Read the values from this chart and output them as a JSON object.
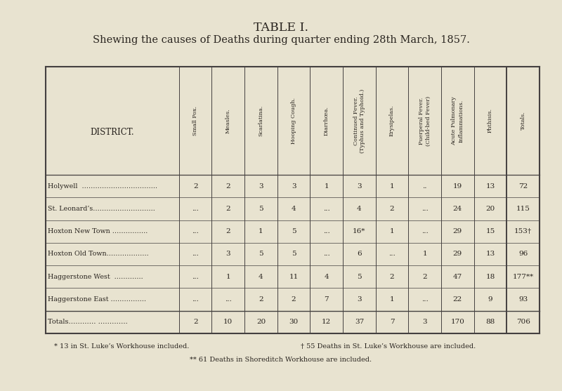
{
  "title": "TABLE I.",
  "subtitle": "Shewing the causes of Deaths during quarter ending 28th March, 1857.",
  "bg_color": "#e8e3d0",
  "text_color": "#2a2520",
  "col_headers": [
    "Small Pox.",
    "Measles.",
    "Scarlatina.",
    "Hooping Cough.",
    "Diarrhœa.",
    "Continued Fever.\n(Typhus and Typhoid.)",
    "Erysipelas.",
    "Puerperal Fever.\n(Child-bed Fever)",
    "Acute Pulmonary\nInflammations.",
    "Phthisis.",
    "Totals."
  ],
  "districts": [
    "Holywell  …………………………….",
    "St. Leonard’s……………………….",
    "Hoxton New Town …………….",
    "Hoxton Old Town……………….",
    "Haggerstone West  ………….",
    "Haggerstone East ……………."
  ],
  "data": [
    [
      "2",
      "2",
      "3",
      "3",
      "1",
      "3",
      "1",
      "..",
      "19",
      "13",
      "72"
    ],
    [
      "...",
      "2",
      "5",
      "4",
      "...",
      "4",
      "2",
      "...",
      "24",
      "20",
      "115"
    ],
    [
      "...",
      "2",
      "1",
      "5",
      "...",
      "16*",
      "1",
      "...",
      "29",
      "15",
      "153†"
    ],
    [
      "...",
      "3",
      "5",
      "5",
      "...",
      "6",
      "...",
      "1",
      "29",
      "13",
      "96"
    ],
    [
      "...",
      "1",
      "4",
      "11",
      "4",
      "5",
      "2",
      "2",
      "47",
      "18",
      "177**"
    ],
    [
      "...",
      "...",
      "2",
      "2",
      "7",
      "3",
      "1",
      "...",
      "22",
      "9",
      "93"
    ]
  ],
  "totals_label": "Totals………… ………….",
  "totals_row": [
    "2",
    "10",
    "20",
    "30",
    "12",
    "37",
    "7",
    "3",
    "170",
    "88",
    "706"
  ],
  "footnote1_left": "* 13 in St. Luke’s Workhouse included.",
  "footnote1_right": "† 55 Deaths in St. Luke’s Workhouse are included.",
  "footnote2": "** 61 Deaths in Shoreditch Workhouse are included."
}
